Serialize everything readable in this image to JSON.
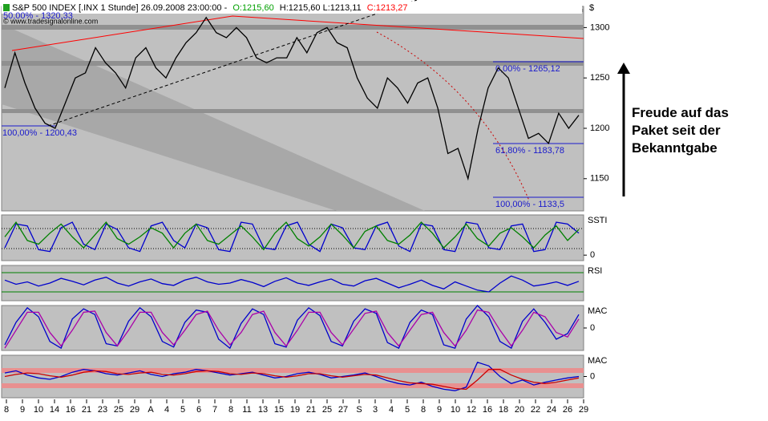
{
  "header": {
    "instrument": "S&P 500 INDEX [.INX  1 Stunde] 26.09.2008 23:00:00 -",
    "open": "O:1215,60",
    "high_low": "H:1215,60 L:1213,11",
    "close": "C:1213,27",
    "watermark": "© www.tradesignalonline.com",
    "currency": "$"
  },
  "annotation": [
    "Freude auf das",
    "Paket seit der",
    "Bekanntgabe"
  ],
  "fib_labels": [
    "50,00% - 1320,33",
    "100,00% - 1200,43",
    "0,00% - 1265,12",
    "61,80% - 1183,78",
    "100,00% - 1133,5"
  ],
  "x_axis": {
    "labels": [
      "8",
      "9",
      "10",
      "14",
      "16",
      "21",
      "23",
      "25",
      "29",
      "A",
      "4",
      "5",
      "6",
      "7",
      "8",
      "11",
      "13",
      "15",
      "19",
      "21",
      "25",
      "27",
      "S",
      "3",
      "4",
      "5",
      "8",
      "9",
      "10",
      "12",
      "16",
      "18",
      "20",
      "22",
      "24",
      "26",
      "29"
    ]
  },
  "chart_data": [
    {
      "type": "line",
      "color": "#000000",
      "ylim": [
        1118,
        1321
      ],
      "yticks": [
        1150,
        1200,
        1250,
        1300
      ],
      "values": [
        1240,
        1275,
        1245,
        1220,
        1205,
        1200,
        1225,
        1250,
        1255,
        1280,
        1265,
        1255,
        1240,
        1270,
        1280,
        1260,
        1250,
        1270,
        1285,
        1295,
        1310,
        1295,
        1290,
        1300,
        1290,
        1270,
        1265,
        1270,
        1270,
        1290,
        1275,
        1295,
        1300,
        1285,
        1280,
        1250,
        1230,
        1220,
        1250,
        1240,
        1225,
        1245,
        1250,
        1220,
        1175,
        1180,
        1150,
        1200,
        1240,
        1260,
        1250,
        1220,
        1190,
        1195,
        1185,
        1215,
        1200,
        1213
      ]
    },
    {
      "type": "line",
      "title": "SSTI",
      "ylim": [
        -15,
        110
      ],
      "yticks": [
        0
      ],
      "series": [
        {
          "color": "#0000cc",
          "values": [
            20,
            85,
            80,
            15,
            10,
            75,
            90,
            30,
            15,
            85,
            70,
            20,
            10,
            80,
            90,
            40,
            20,
            85,
            75,
            15,
            10,
            90,
            85,
            20,
            15,
            80,
            90,
            30,
            10,
            85,
            75,
            20,
            15,
            80,
            90,
            25,
            10,
            85,
            80,
            15,
            10,
            90,
            85,
            20,
            15,
            80,
            85,
            10,
            15,
            90,
            85,
            60
          ]
        },
        {
          "color": "#008000",
          "values": [
            50,
            90,
            40,
            30,
            60,
            85,
            50,
            20,
            55,
            90,
            45,
            30,
            50,
            75,
            60,
            20,
            60,
            85,
            40,
            30,
            55,
            80,
            50,
            15,
            60,
            90,
            45,
            25,
            50,
            85,
            55,
            20,
            65,
            80,
            40,
            30,
            55,
            90,
            60,
            20,
            50,
            85,
            45,
            25,
            60,
            75,
            50,
            20,
            55,
            80,
            40,
            70
          ]
        }
      ]
    },
    {
      "type": "line",
      "title": "RSI",
      "ylim": [
        20,
        80
      ],
      "color": "#0000cc",
      "values": [
        55,
        48,
        52,
        45,
        50,
        58,
        53,
        47,
        55,
        60,
        50,
        45,
        52,
        57,
        49,
        46,
        55,
        60,
        52,
        48,
        50,
        56,
        51,
        44,
        53,
        59,
        50,
        46,
        52,
        57,
        48,
        45,
        54,
        58,
        50,
        42,
        48,
        55,
        46,
        40,
        52,
        45,
        38,
        35,
        50,
        62,
        55,
        45,
        48,
        52,
        46,
        53
      ]
    },
    {
      "type": "line",
      "title": "MAC",
      "ylim": [
        -20,
        20
      ],
      "yticks": [
        0
      ],
      "series": [
        {
          "color": "#0000cc",
          "values": [
            -15,
            5,
            18,
            10,
            -12,
            -18,
            8,
            17,
            12,
            -14,
            -16,
            6,
            18,
            10,
            -12,
            -17,
            5,
            16,
            14,
            -10,
            -18,
            4,
            17,
            12,
            -14,
            -17,
            7,
            18,
            11,
            -12,
            -16,
            6,
            17,
            13,
            -13,
            -18,
            5,
            16,
            12,
            -15,
            -18,
            8,
            20,
            10,
            -12,
            -18,
            6,
            17,
            5,
            -10,
            -5,
            12
          ]
        },
        {
          "color": "#aa00aa",
          "values": [
            -18,
            -2,
            14,
            14,
            -4,
            -16,
            -2,
            14,
            15,
            -4,
            -16,
            -2,
            14,
            14,
            -4,
            -15,
            -2,
            12,
            15,
            -2,
            -15,
            -4,
            12,
            15,
            -4,
            -16,
            -2,
            14,
            14,
            -4,
            -15,
            -1,
            13,
            15,
            -4,
            -16,
            -2,
            12,
            14,
            -4,
            -16,
            -2,
            16,
            14,
            -2,
            -16,
            -2,
            14,
            10,
            -4,
            -8,
            8
          ]
        }
      ]
    },
    {
      "type": "line",
      "title": "MAC",
      "ylim": [
        -30,
        30
      ],
      "yticks": [
        0
      ],
      "series": [
        {
          "color": "#0000cc",
          "values": [
            5,
            8,
            2,
            -2,
            -4,
            0,
            6,
            10,
            8,
            4,
            2,
            5,
            8,
            3,
            0,
            4,
            6,
            10,
            8,
            5,
            2,
            4,
            6,
            2,
            -2,
            0,
            4,
            6,
            3,
            -2,
            0,
            2,
            5,
            0,
            -6,
            -10,
            -12,
            -8,
            -14,
            -18,
            -20,
            -15,
            20,
            15,
            0,
            -10,
            -5,
            -12,
            -8,
            -5,
            -2,
            0
          ]
        },
        {
          "color": "#cc0000",
          "values": [
            0,
            3,
            5,
            4,
            1,
            -1,
            2,
            6,
            8,
            7,
            4,
            3,
            5,
            6,
            3,
            2,
            4,
            7,
            8,
            7,
            4,
            3,
            5,
            4,
            1,
            -1,
            1,
            4,
            4,
            1,
            -1,
            1,
            3,
            2,
            -2,
            -6,
            -9,
            -10,
            -11,
            -14,
            -17,
            -18,
            -5,
            10,
            10,
            2,
            -4,
            -8,
            -10,
            -8,
            -5,
            -2
          ]
        }
      ]
    }
  ]
}
